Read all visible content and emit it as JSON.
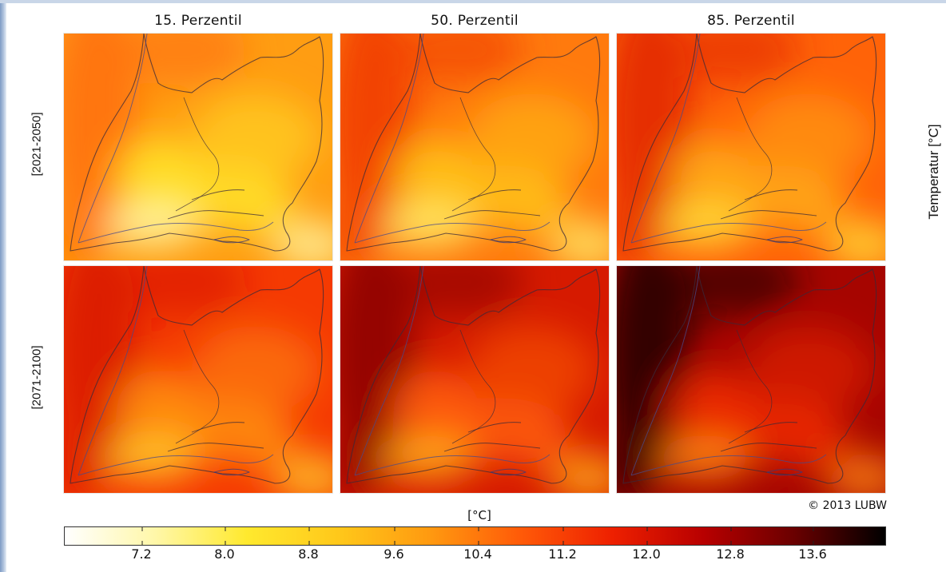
{
  "figure": {
    "column_titles": [
      "15. Perzentil",
      "50. Perzentil",
      "85. Perzentil"
    ],
    "row_labels": [
      "[2021-2050]",
      "[2071-2100]"
    ],
    "side_title": "Temperatur [°C]",
    "unit_label": "[°C]",
    "copyright": "© 2013 LUBW"
  },
  "colorbar": {
    "name": "temperature-scale",
    "ticks": [
      "7.2",
      "8.0",
      "8.8",
      "9.6",
      "10.4",
      "11.2",
      "12.0",
      "12.8",
      "13.6"
    ],
    "colors": [
      "#ffffff",
      "#fff7a8",
      "#ffe92e",
      "#ffc81a",
      "#ff9a10",
      "#ff5a08",
      "#ee2000",
      "#b80000",
      "#6a0000",
      "#000000"
    ]
  },
  "panels": [
    {
      "name": "panel-2021-2050-p15",
      "palette": {
        "bg": "#ff9d12",
        "hot": "#ff6e0c",
        "cool": "#ffe22a",
        "coolest": "#fff8a8"
      }
    },
    {
      "name": "panel-2021-2050-p50",
      "palette": {
        "bg": "#ff7a0d",
        "hot": "#f03a00",
        "cool": "#ffc21a",
        "coolest": "#ffef6a"
      }
    },
    {
      "name": "panel-2021-2050-p85",
      "palette": {
        "bg": "#ff6308",
        "hot": "#e22400",
        "cool": "#ffaa14",
        "coolest": "#ffe03a"
      }
    },
    {
      "name": "panel-2071-2100-p15",
      "palette": {
        "bg": "#f53a02",
        "hot": "#d81800",
        "cool": "#ff8e12",
        "coolest": "#ffcc2a"
      }
    },
    {
      "name": "panel-2071-2100-p50",
      "palette": {
        "bg": "#d61a00",
        "hot": "#8a0400",
        "cool": "#ff5e08",
        "coolest": "#ffb018"
      }
    },
    {
      "name": "panel-2071-2100-p85",
      "palette": {
        "bg": "#a60500",
        "hot": "#1c0000",
        "cool": "#ef2c00",
        "coolest": "#ff8a10"
      }
    }
  ]
}
